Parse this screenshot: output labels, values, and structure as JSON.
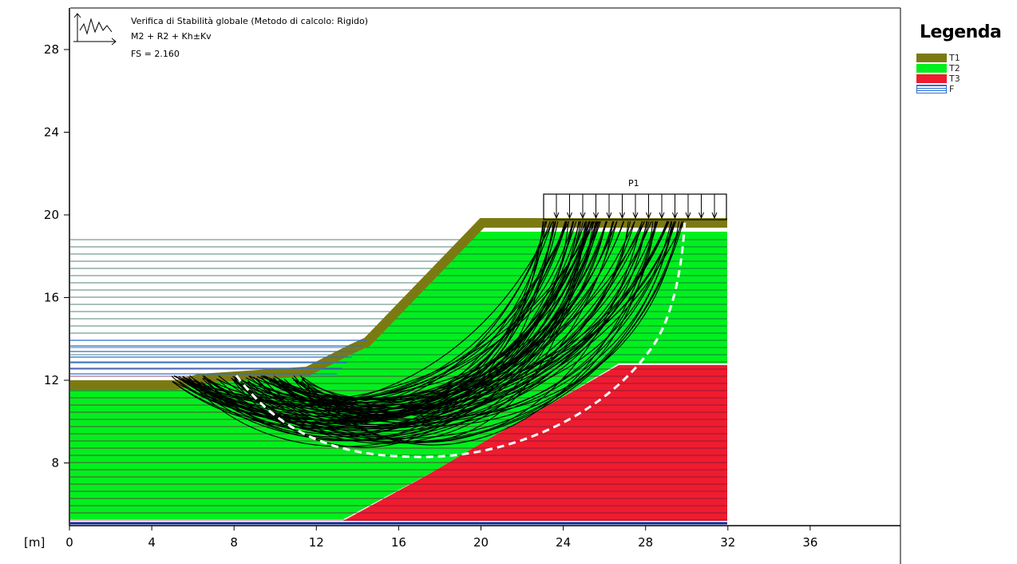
{
  "plot": {
    "info_lines": [
      "Verifica di Stabilità globale (Metodo di calcolo: Rigido)",
      "M2 + R2 + Kh±Kv",
      "FS = 2.160"
    ],
    "x_unit_label": "[m]",
    "x_ticks": [
      "0",
      "4",
      "8",
      "12",
      "16",
      "20",
      "24",
      "28",
      "32",
      "36"
    ],
    "y_ticks": [
      "8",
      "12",
      "16",
      "20",
      "24",
      "28"
    ],
    "load_label": "P1"
  },
  "legend": {
    "title": "Legenda",
    "items": [
      {
        "label": "T1",
        "color": "#7b7a12"
      },
      {
        "label": "T2",
        "color": "#00ef1e"
      },
      {
        "label": "T3",
        "color": "#ee1c2e"
      },
      {
        "label": "F",
        "color": "#2a6fd1"
      }
    ]
  },
  "colors": {
    "t1": "#7b7a12",
    "t2": "#00ef1e",
    "t3": "#ee1c2e",
    "water": "#2a6fd1",
    "surfaces": "#000000",
    "critical_surface": "#ffffff"
  }
}
